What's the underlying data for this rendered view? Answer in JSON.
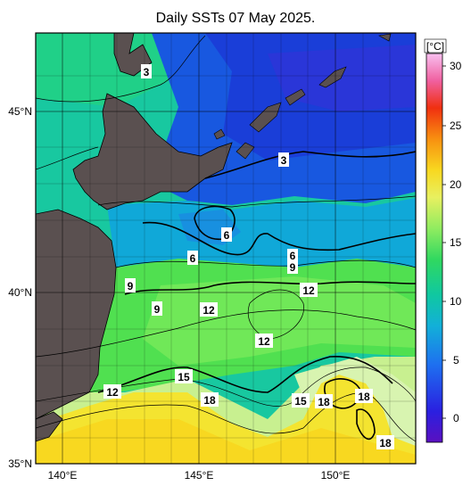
{
  "title": "Daily SSTs 07 May 2025.",
  "map": {
    "lon_labels": [
      "140°E",
      "145°E",
      "150°E"
    ],
    "lat_labels": [
      "45°N",
      "40°N",
      "35°N"
    ],
    "extent": {
      "lon_min": 139,
      "lon_max": 153,
      "lat_min": 35,
      "lat_max": 47
    }
  },
  "colorbar": {
    "unit": "[°C]",
    "ticks": [
      "30",
      "25",
      "20",
      "15",
      "10",
      "5",
      "0"
    ],
    "range": [
      -2,
      32
    ]
  },
  "contour_labels": [
    "3",
    "3",
    "6",
    "6",
    "6",
    "9",
    "9",
    "9",
    "12",
    "12",
    "12",
    "12",
    "15",
    "15",
    "18",
    "18",
    "18",
    "18"
  ],
  "colors": {
    "land": "#5a5050",
    "cold": "#2040d0",
    "mid": "#10b0a0",
    "warm": "#40e040",
    "hot": "#f0e020"
  }
}
